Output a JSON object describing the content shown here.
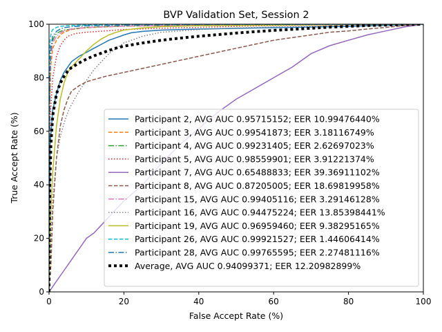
{
  "chart_data": {
    "type": "line",
    "title": "BVP Validation Set, Session 2",
    "xlabel": "False Accept Rate (%)",
    "ylabel": "True Accept Rate (%)",
    "xlim": [
      0,
      100
    ],
    "ylim": [
      0,
      100
    ],
    "xticks": [
      0,
      20,
      40,
      60,
      80,
      100
    ],
    "yticks": [
      0,
      20,
      40,
      60,
      80,
      100
    ],
    "grid": false,
    "legend_position": "lower-right",
    "series": [
      {
        "name": "Participant 2, AVG AUC 0.95715152; EER 10.99476440%",
        "color": "#1f77b4",
        "dash": "solid",
        "x": [
          0,
          0.3,
          1,
          2,
          3,
          4,
          5,
          6,
          7,
          8,
          10,
          12,
          14,
          16,
          18,
          20,
          22,
          25,
          30,
          40,
          60,
          80,
          100
        ],
        "y": [
          0,
          55,
          68,
          74,
          79,
          82,
          84,
          86,
          87,
          88,
          89.5,
          91,
          92.5,
          94,
          95,
          96,
          96.8,
          97.3,
          97.8,
          98.2,
          98.7,
          99.2,
          100
        ]
      },
      {
        "name": "Participant 3, AVG AUC 0.99541873; EER 3.18116749%",
        "color": "#ff7f0e",
        "dash": "dashed",
        "x": [
          0,
          0.2,
          0.5,
          1,
          2,
          3,
          4,
          6,
          8,
          10,
          15,
          20,
          40,
          60,
          80,
          100
        ],
        "y": [
          0,
          70,
          85,
          91,
          94,
          96,
          97,
          98,
          98.4,
          98.7,
          99,
          99.3,
          99.6,
          99.8,
          99.9,
          100
        ]
      },
      {
        "name": "Participant 4, AVG AUC 0.99231405; EER 2.62697023%",
        "color": "#2ca02c",
        "dash": "dashdot",
        "x": [
          0,
          0.2,
          0.5,
          1,
          1.5,
          2,
          3,
          4,
          6,
          8,
          10,
          15,
          20,
          40,
          60,
          80,
          100
        ],
        "y": [
          0,
          80,
          90,
          94,
          95.5,
          96.5,
          97.3,
          97.8,
          98.2,
          98.5,
          98.8,
          99.1,
          99.3,
          99.6,
          99.8,
          99.9,
          100
        ]
      },
      {
        "name": "Participant 5, AVG AUC 0.98559901; EER 3.91221374%",
        "color": "#d62728",
        "dash": "dotted",
        "x": [
          0,
          0.3,
          1,
          2,
          3,
          4,
          5,
          7,
          10,
          15,
          20,
          30,
          40,
          50,
          60,
          80,
          100
        ],
        "y": [
          0,
          65,
          80,
          88,
          92,
          94,
          95.5,
          96.5,
          97,
          97.5,
          98,
          98.5,
          98.8,
          99.2,
          99.5,
          99.8,
          100
        ]
      },
      {
        "name": "Participant 7, AVG AUC 0.65488833; EER 39.36911102%",
        "color": "#9467bd",
        "dash": "solid",
        "x": [
          0,
          1,
          2,
          4,
          6,
          8,
          10,
          12,
          14,
          16,
          18,
          20,
          25,
          30,
          35,
          40,
          45,
          50,
          55,
          60,
          65,
          70,
          75,
          80,
          85,
          90,
          95,
          100
        ],
        "y": [
          0,
          2,
          4,
          8,
          12,
          16,
          20,
          22,
          25,
          28,
          31,
          34,
          40,
          48,
          55,
          61,
          67,
          72,
          76,
          80,
          84,
          89,
          92,
          94,
          96,
          97.5,
          99,
          100
        ]
      },
      {
        "name": "Participant 8, AVG AUC 0.87205005; EER 18.69819958%",
        "color": "#8c564b",
        "dash": "dashed",
        "x": [
          0,
          0.5,
          1,
          2,
          3,
          4,
          5,
          6,
          8,
          10,
          15,
          20,
          25,
          30,
          35,
          40,
          45,
          50,
          55,
          60,
          65,
          70,
          75,
          80,
          85,
          90,
          95,
          100
        ],
        "y": [
          0,
          10,
          30,
          50,
          62,
          68,
          72,
          75,
          77,
          78.5,
          80.5,
          82,
          83.5,
          85,
          86.5,
          88,
          89.5,
          91,
          92.5,
          94,
          95,
          96,
          97,
          97.5,
          98.2,
          98.8,
          99.5,
          100
        ]
      },
      {
        "name": "Participant 15, AVG AUC 0.99405116; EER 3.29146128%",
        "color": "#e377c2",
        "dash": "dashdot",
        "x": [
          0,
          0.2,
          0.5,
          1,
          2,
          3,
          4,
          6,
          10,
          20,
          40,
          60,
          80,
          100
        ],
        "y": [
          0,
          78,
          88,
          93,
          95.5,
          96.7,
          97.5,
          98.2,
          98.8,
          99.3,
          99.6,
          99.8,
          99.9,
          100
        ]
      },
      {
        "name": "Participant 16, AVG AUC 0.94475224; EER 13.85398441%",
        "color": "#7f7f7f",
        "dash": "dotted",
        "x": [
          0,
          0.5,
          1,
          2,
          3,
          4,
          5,
          6,
          8,
          10,
          12,
          14,
          16,
          18,
          20,
          25,
          30,
          40,
          50,
          60,
          80,
          100
        ],
        "y": [
          0,
          20,
          35,
          50,
          58,
          63,
          67,
          70,
          75,
          79,
          83,
          86,
          89,
          91,
          93,
          95.5,
          97,
          98,
          98.6,
          99,
          99.5,
          100
        ]
      },
      {
        "name": "Participant 19, AVG AUC 0.96959460; EER 9.38295165%",
        "color": "#bcbd22",
        "dash": "solid",
        "x": [
          0,
          0.3,
          1,
          2,
          3,
          4,
          5,
          6,
          8,
          10,
          12,
          14,
          16,
          18,
          20,
          25,
          30,
          40,
          60,
          80,
          100
        ],
        "y": [
          0,
          25,
          45,
          62,
          72,
          78,
          82,
          84,
          87,
          90,
          92.5,
          94.5,
          96,
          97,
          97.8,
          98.6,
          99.1,
          99.4,
          99.7,
          99.9,
          100
        ]
      },
      {
        "name": "Participant 26, AVG AUC 0.99921527; EER 1.44606414%",
        "color": "#17becf",
        "dash": "dashed",
        "x": [
          0,
          0.1,
          0.3,
          0.6,
          1,
          2,
          3,
          5,
          10,
          20,
          40,
          100
        ],
        "y": [
          0,
          85,
          94,
          97,
          98,
          98.8,
          99.2,
          99.5,
          99.7,
          99.85,
          99.95,
          100
        ]
      },
      {
        "name": "Participant 28, AVG AUC 0.99765595; EER 2.27481116%",
        "color": "#1f77b4",
        "dash": "dashdot",
        "x": [
          0,
          0.2,
          0.5,
          1,
          2,
          3,
          4,
          6,
          10,
          20,
          40,
          100
        ],
        "y": [
          0,
          80,
          92,
          95.5,
          97.3,
          98.2,
          98.7,
          99.1,
          99.4,
          99.7,
          99.9,
          100
        ]
      },
      {
        "name": "Average, AVG AUC 0.94099371; EER 12.20982899%",
        "color": "#000000",
        "dash": "thick-dotted",
        "x": [
          0,
          0.2,
          0.5,
          1,
          2,
          3,
          4,
          5,
          6,
          8,
          10,
          12,
          14,
          16,
          18,
          20,
          25,
          30,
          35,
          40,
          45,
          50,
          55,
          60,
          65,
          70,
          75,
          80,
          85,
          90,
          95,
          100
        ],
        "y": [
          0,
          40,
          55,
          66,
          74,
          78,
          80.5,
          82.5,
          83.8,
          85.5,
          87,
          88.2,
          89.2,
          90.2,
          91.1,
          91.8,
          93,
          94,
          94.8,
          95.5,
          96.1,
          96.7,
          97.2,
          97.7,
          98.1,
          98.5,
          98.9,
          99.2,
          99.5,
          99.7,
          99.9,
          100
        ]
      }
    ]
  }
}
